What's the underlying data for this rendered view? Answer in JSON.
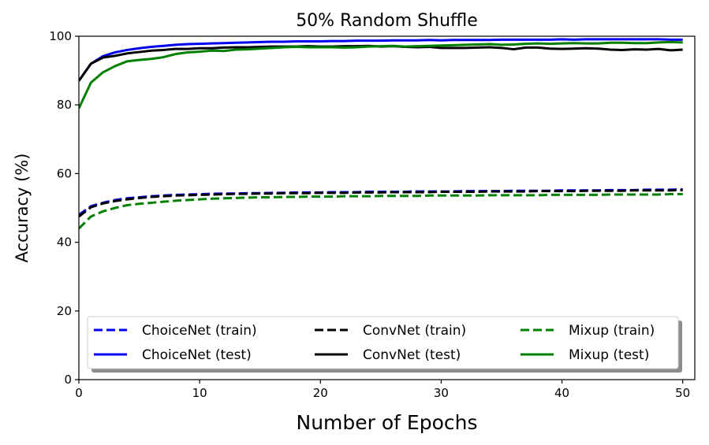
{
  "chart_data": {
    "type": "line",
    "title": "50% Random Shuffle",
    "xlabel": "Number of Epochs",
    "ylabel": "Accuracy (%)",
    "xlim": [
      0,
      51
    ],
    "ylim": [
      0,
      100
    ],
    "xticks": [
      0,
      10,
      20,
      30,
      40,
      50
    ],
    "xtick_labels": [
      "0",
      "10",
      "20",
      "30",
      "40",
      "50"
    ],
    "yticks": [
      0,
      20,
      40,
      60,
      80,
      100
    ],
    "ytick_labels": [
      "0",
      "20",
      "40",
      "60",
      "80",
      "100"
    ],
    "grid": false,
    "legend": {
      "placement": "bottom",
      "columns": 3,
      "shadow": true
    },
    "x": [
      0,
      1,
      2,
      3,
      4,
      5,
      6,
      7,
      8,
      9,
      10,
      11,
      12,
      13,
      14,
      15,
      16,
      17,
      18,
      19,
      20,
      21,
      22,
      23,
      24,
      25,
      26,
      27,
      28,
      29,
      30,
      31,
      32,
      33,
      34,
      35,
      36,
      37,
      38,
      39,
      40,
      41,
      42,
      43,
      44,
      45,
      46,
      47,
      48,
      49,
      50
    ],
    "series": [
      {
        "name": "ChoiceNet (train)",
        "color": "#0000ee",
        "style": "dashed",
        "values": [
          48.0,
          50.5,
          51.5,
          52.3,
          52.8,
          53.1,
          53.4,
          53.6,
          53.8,
          53.9,
          54.0,
          54.1,
          54.2,
          54.2,
          54.3,
          54.3,
          54.4,
          54.4,
          54.5,
          54.5,
          54.5,
          54.6,
          54.6,
          54.6,
          54.7,
          54.7,
          54.7,
          54.7,
          54.8,
          54.8,
          54.8,
          54.8,
          54.9,
          54.9,
          54.9,
          54.9,
          55.0,
          55.0,
          55.0,
          55.0,
          55.1,
          55.1,
          55.1,
          55.1,
          55.2,
          55.2,
          55.2,
          55.3,
          55.3,
          55.3,
          55.4
        ]
      },
      {
        "name": "ChoiceNet (test)",
        "color": "#0000ee",
        "style": "solid",
        "values": [
          87.0,
          92.0,
          94.2,
          95.3,
          96.0,
          96.5,
          96.9,
          97.2,
          97.5,
          97.7,
          97.8,
          97.9,
          98.0,
          98.1,
          98.2,
          98.3,
          98.4,
          98.4,
          98.5,
          98.5,
          98.5,
          98.6,
          98.6,
          98.7,
          98.7,
          98.7,
          98.8,
          98.8,
          98.8,
          98.9,
          98.8,
          98.9,
          98.9,
          98.9,
          98.9,
          99.0,
          99.0,
          99.0,
          99.0,
          99.0,
          99.1,
          99.0,
          99.1,
          99.1,
          99.1,
          99.1,
          99.1,
          99.1,
          99.1,
          99.0,
          99.0
        ]
      },
      {
        "name": "ConvNet (train)",
        "color": "#000000",
        "style": "dashed",
        "values": [
          47.5,
          50.2,
          51.3,
          52.0,
          52.5,
          52.9,
          53.2,
          53.4,
          53.6,
          53.7,
          53.8,
          53.9,
          54.0,
          54.1,
          54.1,
          54.2,
          54.2,
          54.3,
          54.3,
          54.3,
          54.4,
          54.4,
          54.4,
          54.5,
          54.5,
          54.5,
          54.6,
          54.6,
          54.6,
          54.6,
          54.7,
          54.7,
          54.7,
          54.7,
          54.8,
          54.8,
          54.8,
          54.8,
          54.9,
          54.9,
          54.9,
          54.9,
          55.0,
          55.0,
          55.0,
          55.0,
          55.1,
          55.1,
          55.1,
          55.1,
          55.2
        ]
      },
      {
        "name": "ConvNet (test)",
        "color": "#000000",
        "style": "solid",
        "values": [
          87.0,
          92.0,
          93.8,
          94.3,
          95.0,
          95.4,
          95.8,
          96.0,
          96.3,
          96.3,
          96.5,
          96.5,
          96.7,
          96.8,
          96.8,
          96.9,
          97.0,
          97.0,
          97.0,
          97.1,
          97.0,
          97.0,
          97.1,
          97.1,
          97.2,
          97.0,
          97.1,
          96.9,
          96.8,
          96.9,
          96.6,
          96.6,
          96.6,
          96.7,
          96.8,
          96.6,
          96.2,
          96.7,
          96.7,
          96.4,
          96.3,
          96.4,
          96.5,
          96.4,
          96.1,
          96.0,
          96.2,
          96.1,
          96.3,
          95.9,
          96.1
        ]
      },
      {
        "name": "Mixup (train)",
        "color": "#008000",
        "style": "dashed",
        "values": [
          44.0,
          47.5,
          49.0,
          50.0,
          50.8,
          51.2,
          51.5,
          51.8,
          52.1,
          52.3,
          52.5,
          52.7,
          52.8,
          52.9,
          53.0,
          53.1,
          53.1,
          53.2,
          53.2,
          53.3,
          53.3,
          53.3,
          53.4,
          53.4,
          53.4,
          53.5,
          53.5,
          53.5,
          53.5,
          53.6,
          53.6,
          53.6,
          53.6,
          53.6,
          53.7,
          53.7,
          53.7,
          53.7,
          53.7,
          53.8,
          53.8,
          53.8,
          53.8,
          53.8,
          53.9,
          53.9,
          53.9,
          53.9,
          53.9,
          54.0,
          54.0
        ]
      },
      {
        "name": "Mixup (test)",
        "color": "#008000",
        "style": "solid",
        "values": [
          79.0,
          86.5,
          89.5,
          91.3,
          92.7,
          93.1,
          93.4,
          93.9,
          94.8,
          95.3,
          95.5,
          95.8,
          95.7,
          96.1,
          96.2,
          96.4,
          96.6,
          96.8,
          96.9,
          96.8,
          96.8,
          96.8,
          96.7,
          96.8,
          97.0,
          97.1,
          97.2,
          97.0,
          97.1,
          97.2,
          97.3,
          97.4,
          97.5,
          97.6,
          97.7,
          97.5,
          97.6,
          97.8,
          97.9,
          97.8,
          97.9,
          98.0,
          97.9,
          97.9,
          98.1,
          98.1,
          98.0,
          98.0,
          98.2,
          98.3,
          98.2
        ]
      }
    ]
  }
}
